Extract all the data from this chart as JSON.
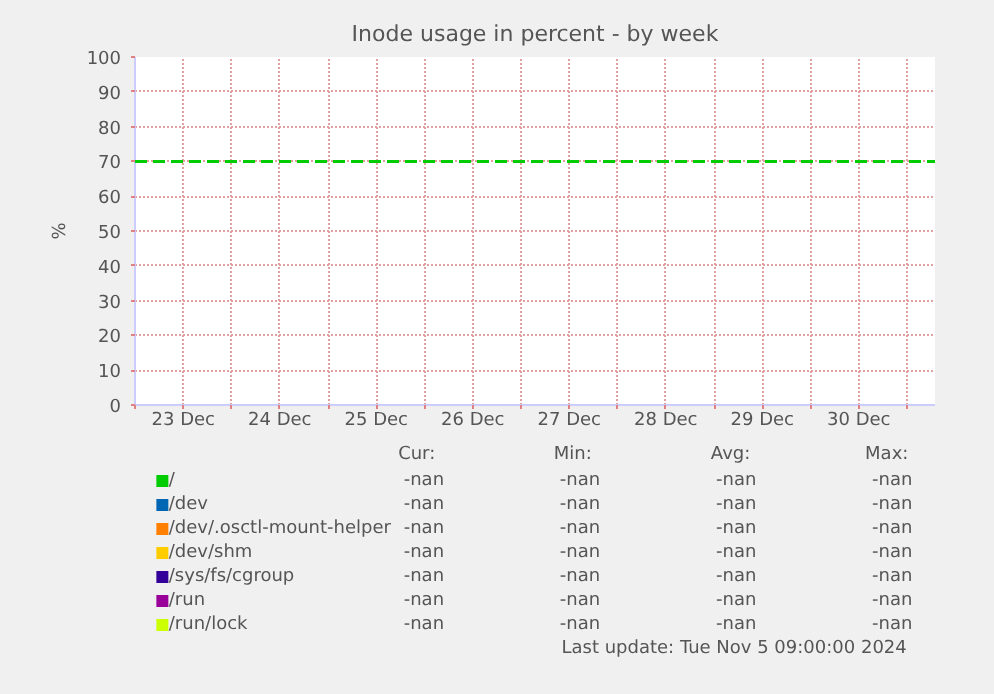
{
  "chart_data": {
    "type": "line",
    "title": "Inode usage in percent - by week",
    "ylabel": "%",
    "categories": [
      "23 Dec",
      "24 Dec",
      "25 Dec",
      "26 Dec",
      "27 Dec",
      "28 Dec",
      "29 Dec",
      "30 Dec"
    ],
    "ylim": [
      0,
      100
    ],
    "yticks": [
      0,
      10,
      20,
      30,
      40,
      50,
      60,
      70,
      80,
      90,
      100
    ],
    "grid": true,
    "legend": "bottom",
    "series": [
      {
        "name": "/",
        "color": "#00cc00",
        "values": [
          null,
          null,
          null,
          null,
          null,
          null,
          null,
          null
        ]
      },
      {
        "name": "/dev",
        "color": "#0066b3",
        "values": [
          null,
          null,
          null,
          null,
          null,
          null,
          null,
          null
        ]
      },
      {
        "name": "/dev/.osctl-mount-helper",
        "color": "#ff8000",
        "values": [
          null,
          null,
          null,
          null,
          null,
          null,
          null,
          null
        ]
      },
      {
        "name": "/dev/shm",
        "color": "#ffcc00",
        "values": [
          null,
          null,
          null,
          null,
          null,
          null,
          null,
          null
        ]
      },
      {
        "name": "/sys/fs/cgroup",
        "color": "#330099",
        "values": [
          null,
          null,
          null,
          null,
          null,
          null,
          null,
          null
        ]
      },
      {
        "name": "/run",
        "color": "#990099",
        "values": [
          null,
          null,
          null,
          null,
          null,
          null,
          null,
          null
        ]
      },
      {
        "name": "/run/lock",
        "color": "#ccff00",
        "values": [
          null,
          null,
          null,
          null,
          null,
          null,
          null,
          null
        ]
      }
    ],
    "ref_lines": [
      {
        "axis": "y",
        "value": 70,
        "color": "#00cc00",
        "line_style": "dashed"
      }
    ],
    "annotations": [
      "Cur:",
      "Min:",
      "Avg:",
      "Max:",
      "-nan",
      "-nan",
      "-nan",
      "-nan",
      "-nan",
      "-nan",
      "-nan",
      "-nan",
      "-nan",
      "-nan",
      "-nan",
      "-nan",
      "-nan",
      "-nan",
      "-nan",
      "-nan",
      "-nan",
      "-nan",
      "-nan",
      "-nan",
      "-nan",
      "-nan",
      "-nan",
      "-nan",
      "-nan",
      "-nan",
      "-nan",
      "-nan",
      "Last update: Tue Nov  5 09:00:00 2024"
    ]
  }
}
